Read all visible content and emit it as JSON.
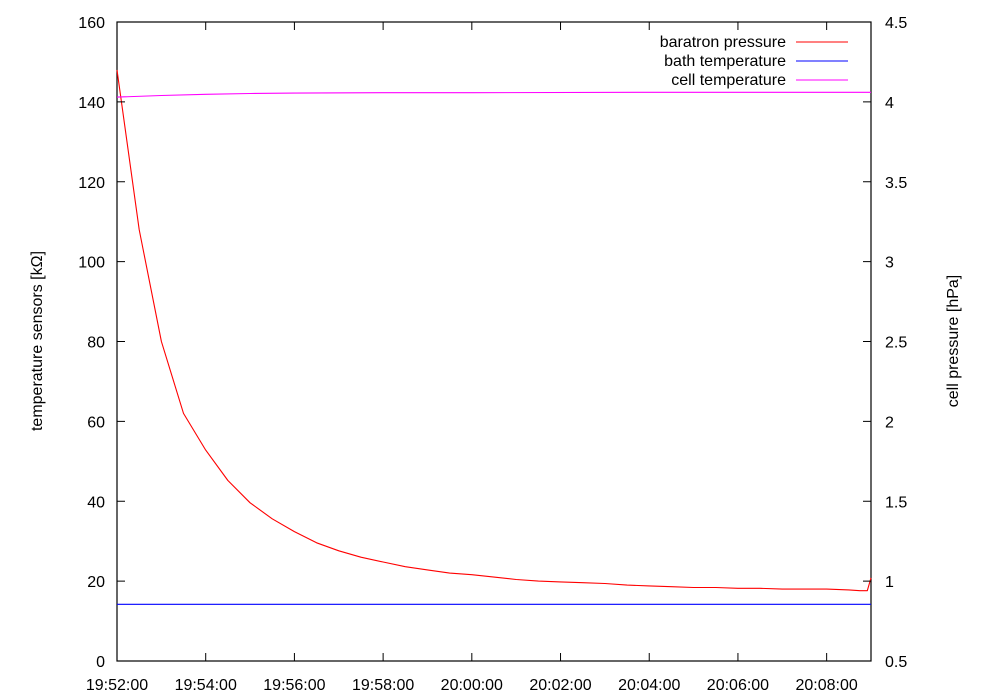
{
  "chart_data": {
    "type": "line",
    "title": "",
    "xlabel": "",
    "ylabel": "temperature sensors [kΩ]",
    "y2label": "cell pressure [hPa]",
    "x_ticks": [
      "19:52:00",
      "19:54:00",
      "19:56:00",
      "19:58:00",
      "20:00:00",
      "20:02:00",
      "20:04:00",
      "20:06:00",
      "20:08:00"
    ],
    "xlim": [
      "19:52:00",
      "20:09:00"
    ],
    "ylim": [
      0,
      160
    ],
    "y2lim": [
      0.5,
      4.5
    ],
    "y_ticks": [
      0,
      20,
      40,
      60,
      80,
      100,
      120,
      140,
      160
    ],
    "y2_ticks": [
      0.5,
      1,
      1.5,
      2,
      2.5,
      3,
      3.5,
      4,
      4.5
    ],
    "y_tick_labels": [
      "0",
      "20",
      "40",
      "60",
      "80",
      "100",
      "120",
      "140",
      "160"
    ],
    "y2_tick_labels": [
      "0.5",
      "1",
      "1.5",
      "2",
      "2.5",
      "3",
      "3.5",
      "4",
      "4.5"
    ],
    "grid": false,
    "legend_position": "top-right",
    "series": [
      {
        "name": "baratron pressure",
        "axis": "y2",
        "color": "#ff0000",
        "x": [
          "19:52:00",
          "19:52:30",
          "19:53:00",
          "19:53:30",
          "19:54:00",
          "19:54:30",
          "19:55:00",
          "19:55:30",
          "19:56:00",
          "19:56:30",
          "19:57:00",
          "19:57:30",
          "19:58:00",
          "19:58:30",
          "19:59:00",
          "19:59:30",
          "20:00:00",
          "20:00:30",
          "20:01:00",
          "20:01:30",
          "20:02:00",
          "20:02:30",
          "20:03:00",
          "20:03:30",
          "20:04:00",
          "20:04:30",
          "20:05:00",
          "20:05:30",
          "20:06:00",
          "20:06:30",
          "20:07:00",
          "20:07:30",
          "20:08:00",
          "20:08:30",
          "20:08:45",
          "20:08:55",
          "20:09:00"
        ],
        "values": [
          4.2,
          3.2,
          2.5,
          2.05,
          1.82,
          1.63,
          1.49,
          1.39,
          1.31,
          1.24,
          1.19,
          1.15,
          1.12,
          1.09,
          1.07,
          1.05,
          1.04,
          1.025,
          1.01,
          1.0,
          0.995,
          0.99,
          0.985,
          0.975,
          0.97,
          0.965,
          0.96,
          0.96,
          0.955,
          0.955,
          0.95,
          0.95,
          0.95,
          0.945,
          0.94,
          0.94,
          1.02
        ]
      },
      {
        "name": "bath temperature",
        "axis": "y",
        "color": "#0000ff",
        "x": [
          "19:52:00",
          "20:09:00"
        ],
        "values": [
          14.2,
          14.2
        ]
      },
      {
        "name": "cell temperature",
        "axis": "y",
        "color": "#ff00ff",
        "x": [
          "19:52:00",
          "19:53:00",
          "19:54:00",
          "19:55:00",
          "19:56:00",
          "19:58:00",
          "20:00:00",
          "20:04:00",
          "20:09:00"
        ],
        "values": [
          141.2,
          141.6,
          141.9,
          142.1,
          142.2,
          142.3,
          142.3,
          142.4,
          142.4
        ]
      }
    ]
  }
}
